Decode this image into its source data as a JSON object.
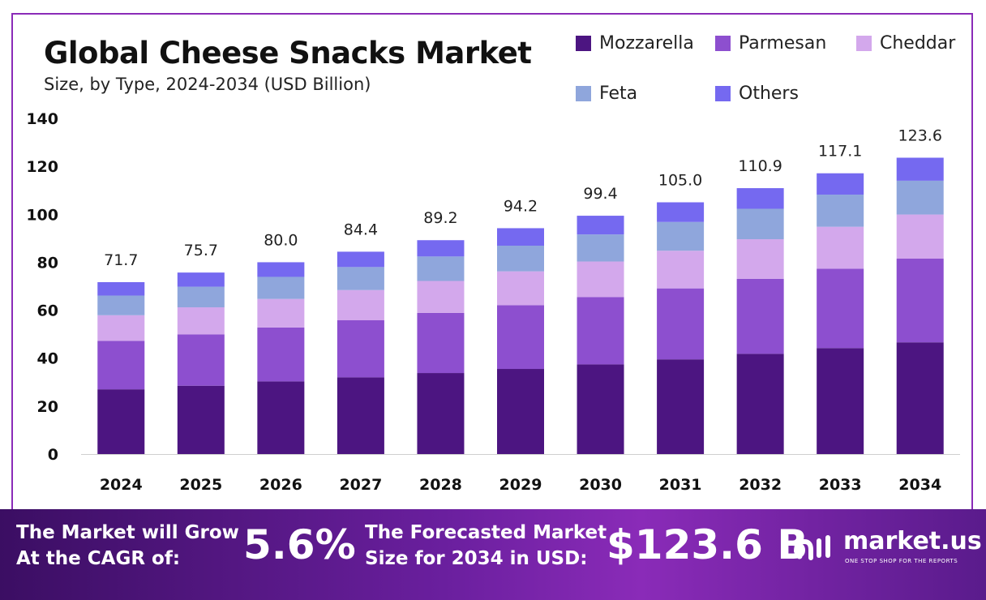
{
  "header": {
    "title": "Global Cheese Snacks Market",
    "subtitle": "Size, by Type, 2024-2034 (USD Billion)"
  },
  "legend": [
    {
      "label": "Mozzarella",
      "color": "#4c1581"
    },
    {
      "label": "Parmesan",
      "color": "#8d4fcf"
    },
    {
      "label": "Cheddar",
      "color": "#d3a8ec"
    },
    {
      "label": "Feta",
      "color": "#8fa6dc"
    },
    {
      "label": "Others",
      "color": "#7569f0"
    }
  ],
  "chart_data": {
    "type": "bar",
    "stacked": true,
    "categories": [
      "2024",
      "2025",
      "2026",
      "2027",
      "2028",
      "2029",
      "2030",
      "2031",
      "2032",
      "2033",
      "2034"
    ],
    "series": [
      {
        "name": "Mozzarella",
        "color": "#4c1581",
        "values": [
          27.0,
          28.5,
          30.3,
          32.0,
          33.8,
          35.5,
          37.4,
          39.5,
          41.8,
          44.2,
          46.6
        ]
      },
      {
        "name": "Parmesan",
        "color": "#8d4fcf",
        "values": [
          20.2,
          21.4,
          22.5,
          23.8,
          25.1,
          26.6,
          28.1,
          29.6,
          31.3,
          33.1,
          34.9
        ]
      },
      {
        "name": "Cheddar",
        "color": "#d3a8ec",
        "values": [
          10.7,
          11.3,
          11.9,
          12.6,
          13.3,
          14.1,
          14.8,
          15.7,
          16.5,
          17.5,
          18.4
        ]
      },
      {
        "name": "Feta",
        "color": "#8fa6dc",
        "values": [
          8.2,
          8.6,
          9.2,
          9.6,
          10.2,
          10.7,
          11.3,
          12.0,
          12.7,
          13.4,
          14.1
        ]
      },
      {
        "name": "Others",
        "color": "#7569f0",
        "values": [
          5.6,
          5.9,
          6.1,
          6.4,
          6.8,
          7.3,
          7.8,
          8.2,
          8.6,
          8.9,
          9.6
        ]
      }
    ],
    "totals": [
      "71.7",
      "75.7",
      "80.0",
      "84.4",
      "89.2",
      "94.2",
      "99.4",
      "105.0",
      "110.9",
      "117.1",
      "123.6"
    ],
    "ylim": [
      0,
      140
    ],
    "yticks": [
      "0",
      "20",
      "40",
      "60",
      "80",
      "100",
      "120",
      "140"
    ],
    "grid": false,
    "legend_position": "top-right"
  },
  "banner": {
    "cagr_label_line1": "The Market will Grow",
    "cagr_label_line2": "At the CAGR of:",
    "cagr_value": "5.6%",
    "forecast_label_line1": "The Forecasted Market",
    "forecast_label_line2": "Size for 2034 in USD:",
    "forecast_value": "$123.6 B",
    "brand_name": "market.us",
    "brand_tagline": "ONE STOP SHOP FOR THE REPORTS"
  }
}
